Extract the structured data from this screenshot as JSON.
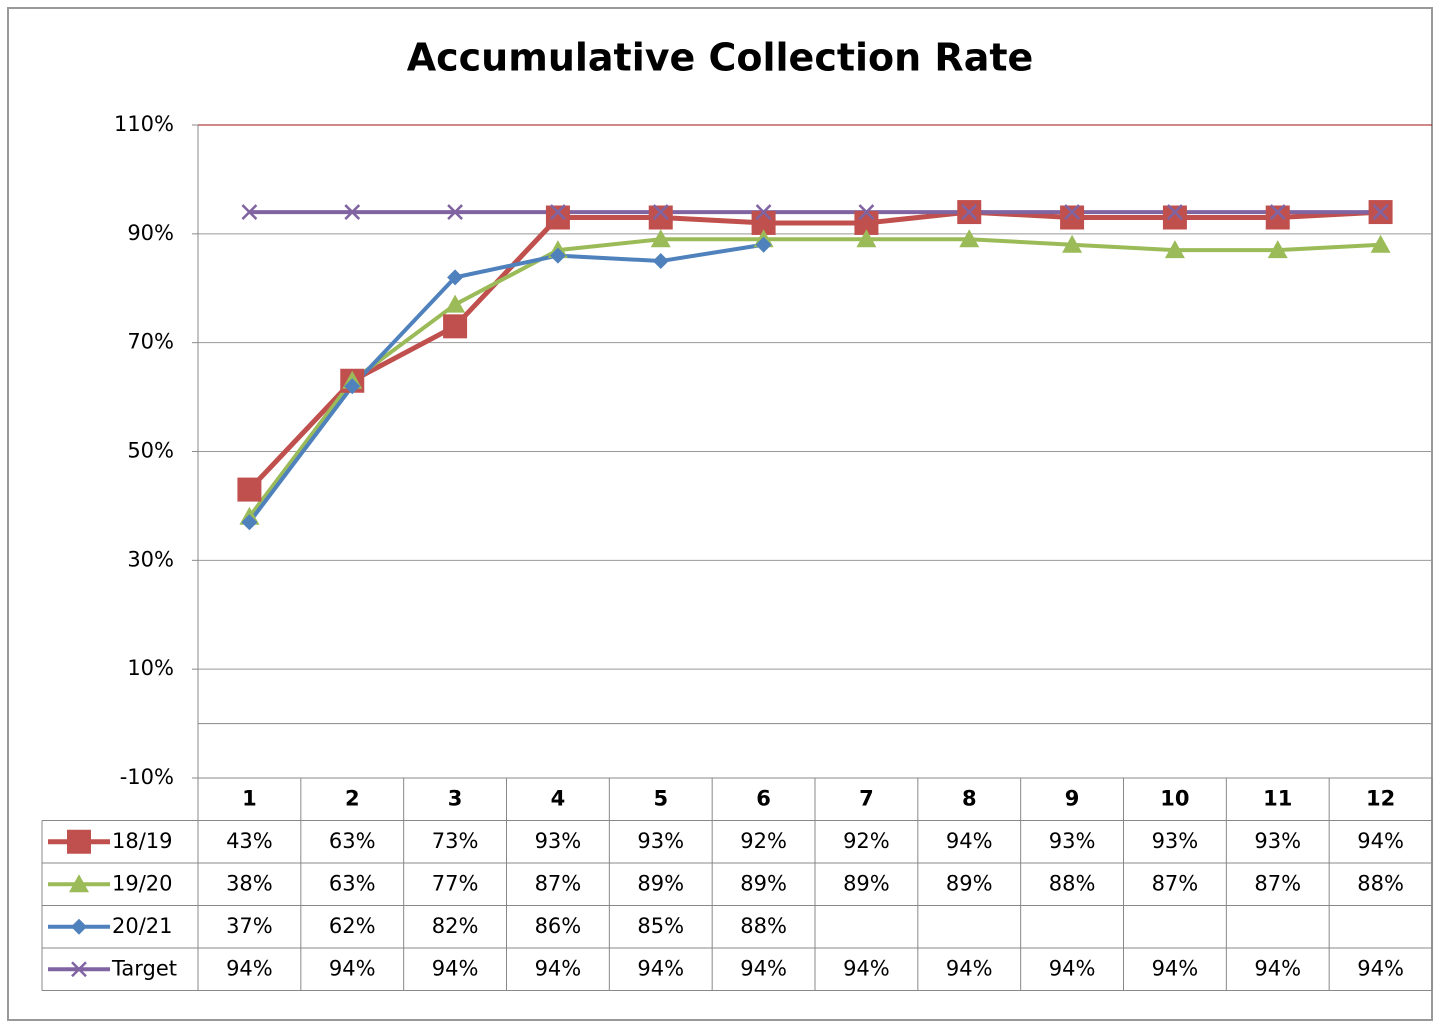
{
  "chart_data": {
    "type": "line",
    "title": "Accumulative Collection Rate",
    "categories": [
      "1",
      "2",
      "3",
      "4",
      "5",
      "6",
      "7",
      "8",
      "9",
      "10",
      "11",
      "12"
    ],
    "series": [
      {
        "name": "18/19",
        "color": "#c0504d",
        "marker": "square",
        "values": [
          43,
          63,
          73,
          93,
          93,
          92,
          92,
          94,
          93,
          93,
          93,
          94
        ],
        "value_labels": [
          "43%",
          "63%",
          "73%",
          "93%",
          "93%",
          "92%",
          "92%",
          "94%",
          "93%",
          "93%",
          "93%",
          "94%"
        ]
      },
      {
        "name": "19/20",
        "color": "#9bbb59",
        "marker": "triangle",
        "values": [
          38,
          63,
          77,
          87,
          89,
          89,
          89,
          89,
          88,
          87,
          87,
          88
        ],
        "value_labels": [
          "38%",
          "63%",
          "77%",
          "87%",
          "89%",
          "89%",
          "89%",
          "89%",
          "88%",
          "87%",
          "87%",
          "88%"
        ]
      },
      {
        "name": "20/21",
        "color": "#4f81bd",
        "marker": "diamond",
        "values": [
          37,
          62,
          82,
          86,
          85,
          88,
          null,
          null,
          null,
          null,
          null,
          null
        ],
        "value_labels": [
          "37%",
          "62%",
          "82%",
          "86%",
          "85%",
          "88%",
          null,
          null,
          null,
          null,
          null,
          null
        ]
      },
      {
        "name": "Target",
        "color": "#8064a2",
        "marker": "x",
        "values": [
          94,
          94,
          94,
          94,
          94,
          94,
          94,
          94,
          94,
          94,
          94,
          94
        ],
        "value_labels": [
          "94%",
          "94%",
          "94%",
          "94%",
          "94%",
          "94%",
          "94%",
          "94%",
          "94%",
          "94%",
          "94%",
          "94%"
        ]
      }
    ],
    "ylim": [
      -10,
      110
    ],
    "yticks": [
      {
        "value": -10,
        "label": "-10%"
      },
      {
        "value": 10,
        "label": "10%"
      },
      {
        "value": 30,
        "label": "30%"
      },
      {
        "value": 50,
        "label": "50%"
      },
      {
        "value": 70,
        "label": "70%"
      },
      {
        "value": 90,
        "label": "90%"
      },
      {
        "value": 110,
        "label": "110%"
      }
    ],
    "grid": true,
    "legend": "data-table"
  }
}
